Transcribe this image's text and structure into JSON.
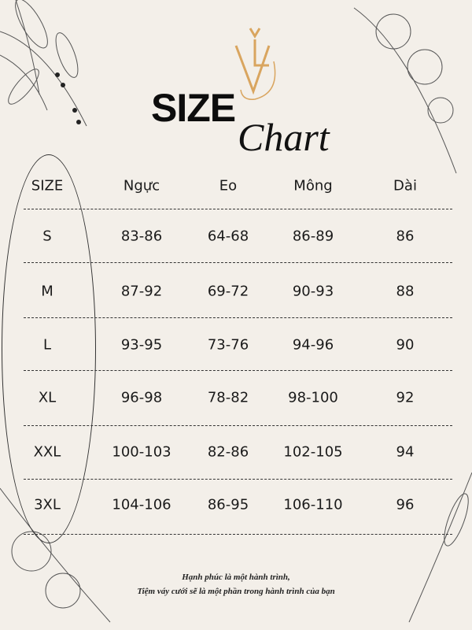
{
  "logo": {
    "letters": "VL",
    "color": "#d9a55f"
  },
  "title": {
    "bold": "SIZE",
    "script": "Chart"
  },
  "table": {
    "headers": [
      "SIZE",
      "Ngực",
      "Eo",
      "Mông",
      "Dài"
    ],
    "rows": [
      [
        "S",
        "83-86",
        "64-68",
        "86-89",
        "86"
      ],
      [
        "M",
        "87-92",
        "69-72",
        "90-93",
        "88"
      ],
      [
        "L",
        "93-95",
        "73-76",
        "94-96",
        "90"
      ],
      [
        "XL",
        "96-98",
        "78-82",
        "98-100",
        "92"
      ],
      [
        "XXL",
        "100-103",
        "82-86",
        "102-105",
        "94"
      ],
      [
        "3XL",
        "104-106",
        "86-95",
        "106-110",
        "96"
      ]
    ]
  },
  "footer": {
    "line1": "Hạnh phúc là một hành trình,",
    "line2": "Tiệm váy cưới sẽ là một phần trong hành trình của bạn"
  },
  "colors": {
    "background": "#f3efe9",
    "text": "#1a1a1a",
    "logo": "#d9a55f"
  }
}
